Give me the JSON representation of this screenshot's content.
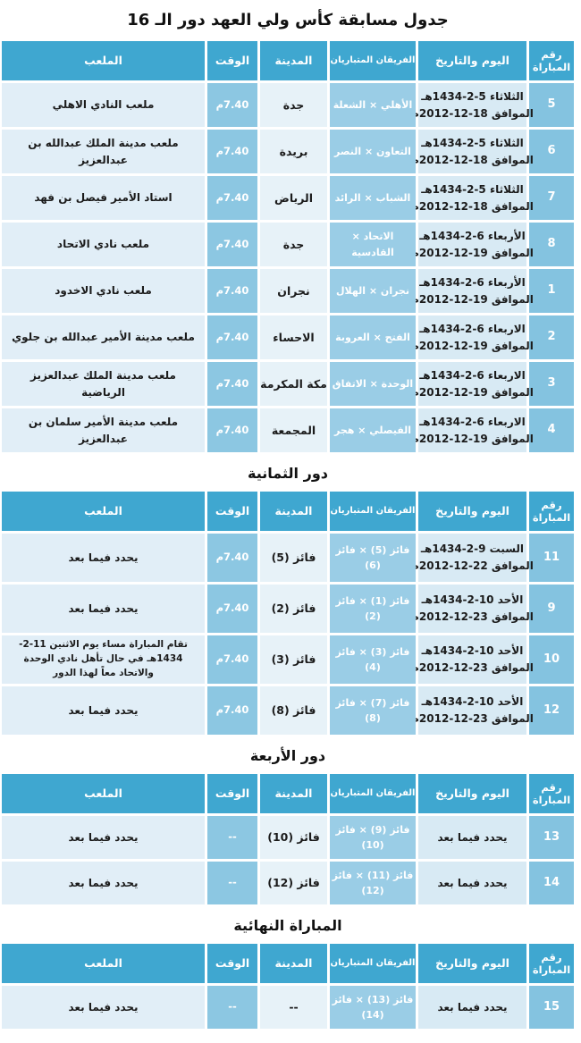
{
  "title": "جدول مسابقة كأس ولي العهد دور الـ 16",
  "columns": {
    "match_no": "رقم\nالمباراة",
    "date": "اليوم والتاريخ",
    "teams": "الفريقان المتباريان",
    "city": "المدينة",
    "time": "الوقت",
    "stadium": "الملعب"
  },
  "colors": {
    "header_bg": "#3fa7d0",
    "match_no_bg": "#84c3e0",
    "teams_bg": "#9acde6",
    "time_bg": "#8cc7e2",
    "date_bg": "#d8eaf4",
    "city_bg": "#e7f2f8",
    "stadium_bg": "#e1eef7"
  },
  "sections": [
    {
      "rows": [
        {
          "no": "5",
          "date": "الثلاثاء 5-2-1434هـ\nالموافق 18-12-2012م",
          "teams": "الأهلي × الشعلة",
          "city": "جدة",
          "time": "7.40م",
          "stadium": "ملعب النادي الاهلي"
        },
        {
          "no": "6",
          "date": "الثلاثاء 5-2-1434هـ\nالموافق 18-12-2012م",
          "teams": "التعاون × النصر",
          "city": "بريدة",
          "time": "7.40م",
          "stadium": "ملعب مدينة الملك عبدالله بن عبدالعزيز"
        },
        {
          "no": "7",
          "date": "الثلاثاء 5-2-1434هـ\nالموافق 18-12-2012م",
          "teams": "الشباب × الرائد",
          "city": "الرياض",
          "time": "7.40م",
          "stadium": "استاد الأمير فيصل بن فهد"
        },
        {
          "no": "8",
          "date": "الأربعاء 6-2-1434هـ\nالموافق 19-12-2012م",
          "teams": "الاتحاد × القادسية",
          "city": "جدة",
          "time": "7.40م",
          "stadium": "ملعب نادي الاتحاد"
        },
        {
          "no": "1",
          "date": "الأربعاء 6-2-1434هـ\nالموافق 19-12-2012م",
          "teams": "نجران × الهلال",
          "city": "نجران",
          "time": "7.40م",
          "stadium": "ملعب نادي الاخدود"
        },
        {
          "no": "2",
          "date": "الاربعاء 6-2-1434هـ\nالموافق 19-12-2012م",
          "teams": "الفتح × العروبة",
          "city": "الاحساء",
          "time": "7.40م",
          "stadium": "ملعب مدينة الأمير عبدالله بن جلوي"
        },
        {
          "no": "3",
          "date": "الاربعاء 6-2-1434هـ\nالموافق 19-12-2012م",
          "teams": "الوحدة × الاتفاق",
          "city": "مكة المكرمة",
          "time": "7.40م",
          "stadium": "ملعب مدينة الملك عبدالعزيز الرياضية"
        },
        {
          "no": "4",
          "date": "الاربعاء 6-2-1434هـ\nالموافق 19-12-2012م",
          "teams": "الفيصلي × هجر",
          "city": "المجمعة",
          "time": "7.40م",
          "stadium": "ملعب مدينة الأمير سلمان بن عبدالعزيز"
        }
      ]
    },
    {
      "title": "دور الثمانية",
      "rows": [
        {
          "no": "11",
          "date": "السبت 9-2-1434هـ\nالموافق 22-12-2012م",
          "teams": "فائز (5) × فائز (6)",
          "city": "فائز (5)",
          "time": "7.40م",
          "stadium": "يحدد فيما بعد"
        },
        {
          "no": "9",
          "date": "الأحد 10-2-1434هـ\nالموافق 23-12-2012م",
          "teams": "فائز (1) × فائز (2)",
          "city": "فائز (2)",
          "time": "7.40م",
          "stadium": "يحدد فيما بعد"
        },
        {
          "no": "10",
          "date": "الأحد 10-2-1434هـ\nالموافق 23-12-2012م",
          "teams": "فائز (3) × فائز (4)",
          "city": "فائز (3)",
          "time": "7.40م",
          "stadium": "تقام المباراة مساء يوم الاثنين 11-2-1434هـ في حال تأهل نادي الوحدة والاتحاد معاً لهذا الدور"
        },
        {
          "no": "12",
          "date": "الأحد 10-2-1434هـ\nالموافق 23-12-2012م",
          "teams": "فائز (7) × فائز (8)",
          "city": "فائز (8)",
          "time": "7.40م",
          "stadium": "يحدد فيما بعد"
        }
      ]
    },
    {
      "title": "دور الأربعة",
      "rows": [
        {
          "no": "13",
          "date": "يحدد فيما بعد",
          "teams": "فائز (9) × فائز\n(10)",
          "city": "فائز (10)",
          "time": "--",
          "stadium": "يحدد فيما بعد"
        },
        {
          "no": "14",
          "date": "يحدد فيما بعد",
          "teams": "فائز (11) × فائز\n(12)",
          "city": "فائز (12)",
          "time": "--",
          "stadium": "يحدد فيما بعد"
        }
      ]
    },
    {
      "title": "المباراة النهائية",
      "rows": [
        {
          "no": "15",
          "date": "يحدد فيما بعد",
          "teams": "فائز (13) × فائز\n(14)",
          "city": "--",
          "time": "--",
          "stadium": "يحدد فيما بعد"
        }
      ]
    }
  ]
}
